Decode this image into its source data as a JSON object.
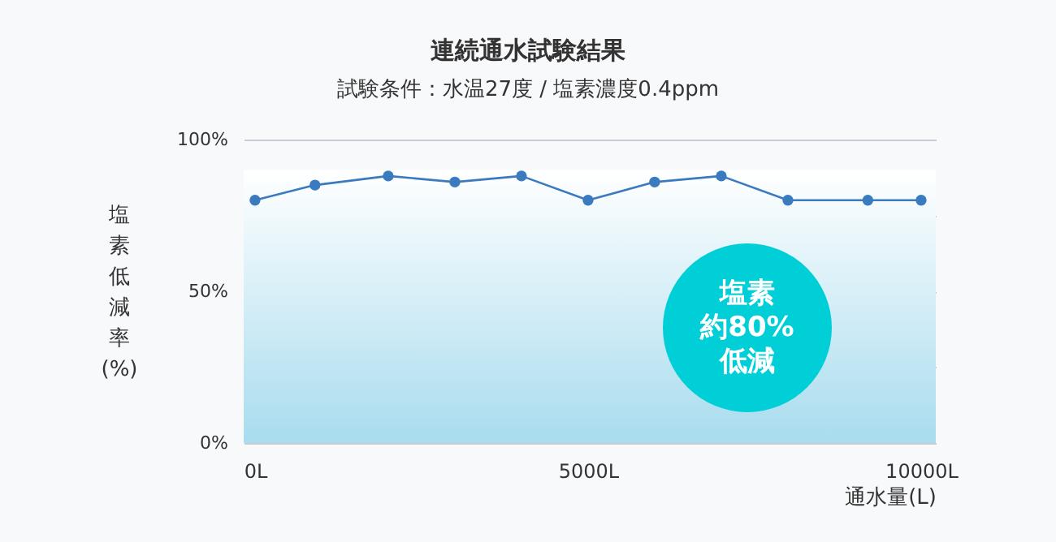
{
  "chart_data": {
    "type": "line",
    "title": "連続通水試験結果",
    "subtitle": "試験条件：水温27度 / 塩素濃度0.4ppm",
    "xlabel": "通水量(L)",
    "ylabel": "塩素低減率(%)",
    "x": [
      0,
      900,
      2000,
      3000,
      4000,
      5000,
      6000,
      7000,
      8000,
      9200,
      10000
    ],
    "series": [
      {
        "color": "#3a7bbf",
        "values": [
          80,
          85,
          88,
          86,
          88,
          80,
          86,
          88,
          80,
          80,
          80
        ]
      }
    ],
    "xlim": [
      -170,
      10220
    ],
    "xticks": [
      {
        "value": 0,
        "label": "0L"
      },
      {
        "value": 5000,
        "label": "5000L"
      },
      {
        "value": 10000,
        "label": "10000L"
      }
    ],
    "ylim": [
      0,
      100
    ],
    "yticks": [
      {
        "value": 0,
        "label": "0%"
      },
      {
        "value": 25,
        "label": null
      },
      {
        "value": 50,
        "label": "50%"
      },
      {
        "value": 75,
        "label": null
      },
      {
        "value": 100,
        "label": "100%"
      }
    ],
    "grid": "y",
    "marker": "circle",
    "line_style": "solid",
    "tick_labels": "xy",
    "bands": [
      {
        "axis": "y",
        "from": 0,
        "to": 90,
        "color": "#a8dcee"
      }
    ],
    "annotations": [
      "塩素",
      "約80%",
      "低減"
    ]
  }
}
